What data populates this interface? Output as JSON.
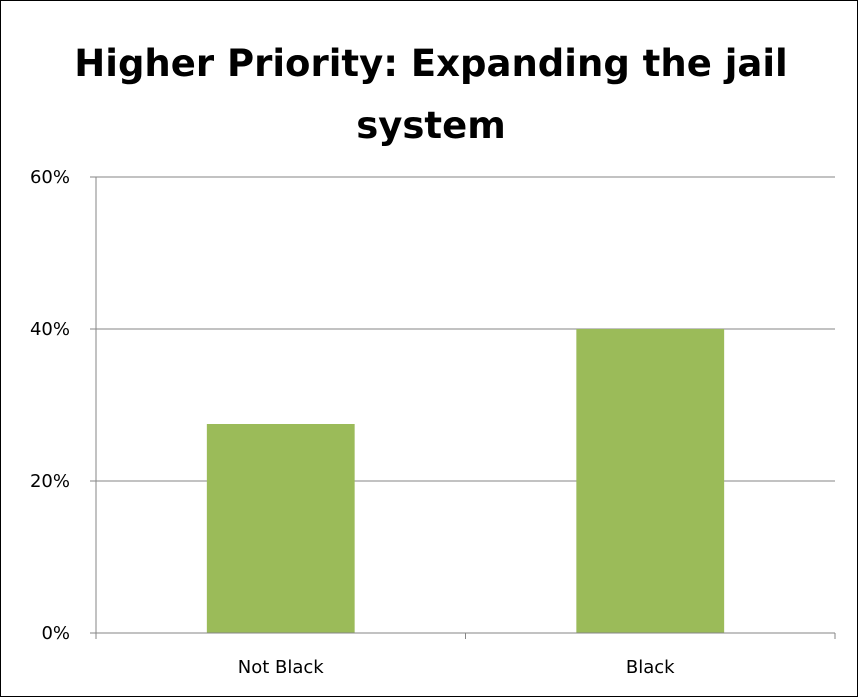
{
  "chart_data": {
    "type": "bar",
    "title": "Higher Priority: Expanding the jail system",
    "categories": [
      "Not Black",
      "Black"
    ],
    "values": [
      0.275,
      0.4
    ],
    "ylim": [
      0,
      0.6
    ],
    "y_ticks": [
      "0%",
      "20%",
      "40%",
      "60%"
    ],
    "grid": true,
    "legend": "none",
    "bar_color": "#9BBB59",
    "axis_color": "#868686"
  }
}
